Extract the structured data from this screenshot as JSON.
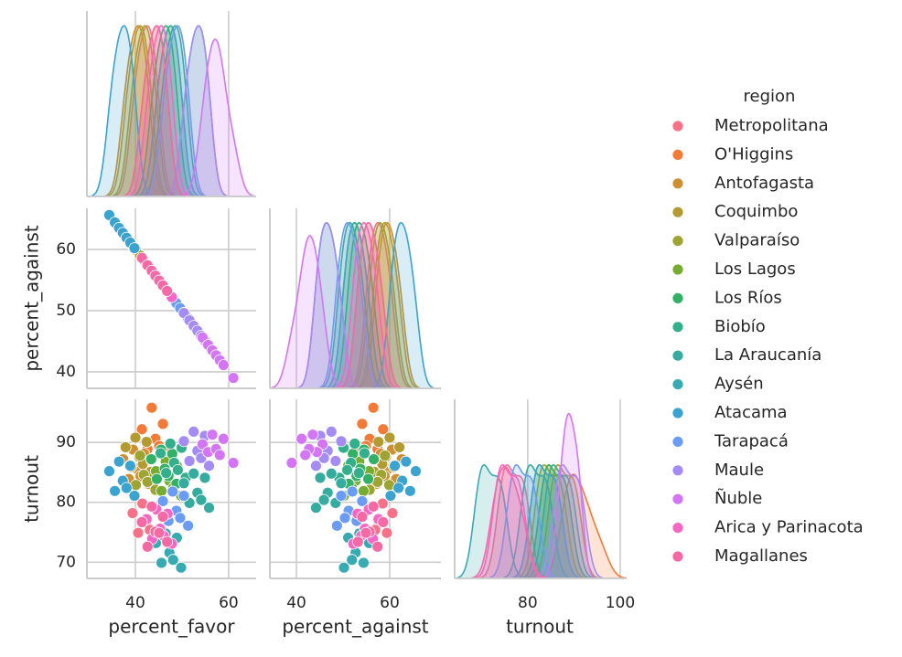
{
  "chart_data": {
    "type": "pairplot",
    "legend_title": "region",
    "axes": [
      {
        "label": "percent_favor",
        "xlim": [
          29.6,
          65.9
        ],
        "xticks": [
          40,
          60
        ]
      },
      {
        "label": "percent_against",
        "xlim": [
          34.3,
          71
        ],
        "xticks": [
          40,
          60
        ],
        "ylim": [
          37.3,
          66.7
        ],
        "yticks": [
          40,
          50,
          60
        ]
      },
      {
        "label": "turnout",
        "xlim": [
          64.2,
          101
        ],
        "xticks": [
          80,
          100
        ],
        "ylim": [
          67.3,
          97.2
        ],
        "yticks": [
          70,
          80,
          90
        ]
      }
    ],
    "grid": true,
    "series": [
      {
        "name": "Metropolitana",
        "color": "#f77189",
        "values": [
          [
            39.4,
            40.6,
            41.5,
            42.3,
            43.1,
            43.9,
            44.8
          ],
          [
            60.6,
            59.4,
            58.5,
            57.7,
            56.9,
            56.1,
            55.2
          ],
          [
            78.2,
            74.9,
            79.8,
            76.6,
            75.4,
            79.1,
            74.1
          ]
        ]
      },
      {
        "name": "O'Higgins",
        "color": "#f47a38",
        "values": [
          [
            41.4,
            42.6,
            43.5,
            44.3,
            45.1,
            45.9,
            46.8
          ],
          [
            58.6,
            57.4,
            56.5,
            55.7,
            54.9,
            54.1,
            53.2
          ],
          [
            92.2,
            88.9,
            95.8,
            90.6,
            89.4,
            93.1,
            88.1
          ]
        ]
      },
      {
        "name": "Antofagasta",
        "color": "#ce8f31",
        "values": [
          [
            37.4,
            38.6,
            39.5,
            40.3,
            41.1,
            41.9,
            42.8
          ],
          [
            62.6,
            61.4,
            60.5,
            59.7,
            58.9,
            58.1,
            57.2
          ],
          [
            87.2,
            83.9,
            88.8,
            85.6,
            84.4,
            88.1,
            83.1
          ]
        ]
      },
      {
        "name": "Coquimbo",
        "color": "#b39a31",
        "values": [
          [
            37.9,
            39.1,
            40.0,
            40.8,
            41.6,
            42.4,
            43.3
          ],
          [
            62.1,
            60.9,
            60.0,
            59.2,
            58.4,
            57.6,
            56.7
          ],
          [
            89.2,
            85.9,
            90.8,
            87.6,
            86.4,
            90.1,
            85.1
          ]
        ]
      },
      {
        "name": "Valparaíso",
        "color": "#9da431",
        "values": [
          [
            38.9,
            40.1,
            41.0,
            41.8,
            42.6,
            43.4,
            44.3
          ],
          [
            61.1,
            59.9,
            59.0,
            58.2,
            57.4,
            56.6,
            55.7
          ],
          [
            86.2,
            82.9,
            87.8,
            84.6,
            83.4,
            87.1,
            82.1
          ]
        ]
      },
      {
        "name": "Los Lagos",
        "color": "#76ad31",
        "values": [
          [
            44.4,
            45.6,
            46.5,
            47.3,
            48.1,
            48.9,
            49.8
          ],
          [
            55.6,
            54.4,
            53.5,
            52.7,
            51.9,
            51.1,
            50.2
          ],
          [
            85.2,
            81.9,
            86.8,
            83.6,
            82.4,
            86.1,
            81.1
          ]
        ]
      },
      {
        "name": "Los Ríos",
        "color": "#32b166",
        "values": [
          [
            43.4,
            44.6,
            45.5,
            46.3,
            47.1,
            47.9,
            48.8
          ],
          [
            56.6,
            55.4,
            54.5,
            53.7,
            52.9,
            52.1,
            51.2
          ],
          [
            87.2,
            83.9,
            88.8,
            85.6,
            84.4,
            88.1,
            83.1
          ]
        ]
      },
      {
        "name": "Biobío",
        "color": "#34af8b",
        "values": [
          [
            45.4,
            46.6,
            47.5,
            48.3,
            49.1,
            49.9,
            50.8
          ],
          [
            54.6,
            53.4,
            52.5,
            51.7,
            50.9,
            50.1,
            49.2
          ],
          [
            88.2,
            84.9,
            89.8,
            86.6,
            85.4,
            89.1,
            84.1
          ]
        ]
      },
      {
        "name": "La Araucanía",
        "color": "#35ac9f",
        "values": [
          [
            50.4,
            51.6,
            52.5,
            53.3,
            54.1,
            54.9,
            55.8
          ],
          [
            49.6,
            48.4,
            47.5,
            46.7,
            45.9,
            45.1,
            44.2
          ],
          [
            83.2,
            79.9,
            84.8,
            81.6,
            80.4,
            84.1,
            79.1
          ]
        ]
      },
      {
        "name": "Aysén",
        "color": "#37abb1",
        "values": [
          [
            44.4,
            45.6,
            46.5,
            47.3,
            48.1,
            48.9,
            49.8
          ],
          [
            55.6,
            54.4,
            53.5,
            52.7,
            51.9,
            51.1,
            50.2
          ],
          [
            73.2,
            69.9,
            74.8,
            71.6,
            70.4,
            74.1,
            69.1
          ]
        ]
      },
      {
        "name": "Atacama",
        "color": "#3ba3d0",
        "values": [
          [
            34.4,
            35.6,
            36.5,
            37.3,
            38.1,
            38.9,
            39.8
          ],
          [
            65.6,
            64.4,
            63.5,
            62.7,
            61.9,
            61.1,
            60.2
          ],
          [
            85.2,
            81.9,
            86.8,
            83.6,
            82.4,
            86.1,
            81.1
          ]
        ]
      },
      {
        "name": "Tarapacá",
        "color": "#6a9cf5",
        "values": [
          [
            45.9,
            47.1,
            48.0,
            48.8,
            49.6,
            50.4,
            51.3
          ],
          [
            54.1,
            52.9,
            52.0,
            51.2,
            50.4,
            49.6,
            48.7
          ],
          [
            80.2,
            76.9,
            81.8,
            78.6,
            77.4,
            81.1,
            76.1
          ]
        ]
      },
      {
        "name": "Maule",
        "color": "#a48cf4",
        "values": [
          [
            50.4,
            51.6,
            52.5,
            53.3,
            54.1,
            54.9,
            55.8
          ],
          [
            49.6,
            48.4,
            47.5,
            46.7,
            45.9,
            45.1,
            44.2
          ],
          [
            90.2,
            86.9,
            91.8,
            88.6,
            87.4,
            91.1,
            86.1
          ]
        ]
      },
      {
        "name": "Ñuble",
        "color": "#d375f4",
        "values": [
          [
            54.4,
            55.6,
            56.5,
            57.3,
            58.1,
            58.9,
            61.0
          ],
          [
            45.6,
            44.4,
            43.5,
            42.7,
            41.9,
            41.1,
            39.0
          ],
          [
            89.7,
            88.4,
            91.3,
            88.9,
            87.9,
            90.6,
            86.6
          ]
        ]
      },
      {
        "name": "Arica y Parinacota",
        "color": "#f566c5",
        "values": [
          [
            42.4,
            43.6,
            44.5,
            45.3,
            46.1,
            46.9,
            47.8
          ],
          [
            57.6,
            56.4,
            55.5,
            54.7,
            53.9,
            53.1,
            52.2
          ],
          [
            77.2,
            73.9,
            78.8,
            75.6,
            74.4,
            78.1,
            73.1
          ]
        ]
      },
      {
        "name": "Magallanes",
        "color": "#f569a5",
        "values": [
          [
            41.4,
            42.6,
            43.5,
            44.3,
            45.1,
            45.9,
            46.8
          ],
          [
            58.6,
            57.4,
            56.5,
            55.7,
            54.9,
            54.1,
            53.2
          ],
          [
            76.7,
            72.6,
            79.3,
            75.1,
            74.9,
            77.6,
            73.4
          ]
        ]
      }
    ]
  }
}
